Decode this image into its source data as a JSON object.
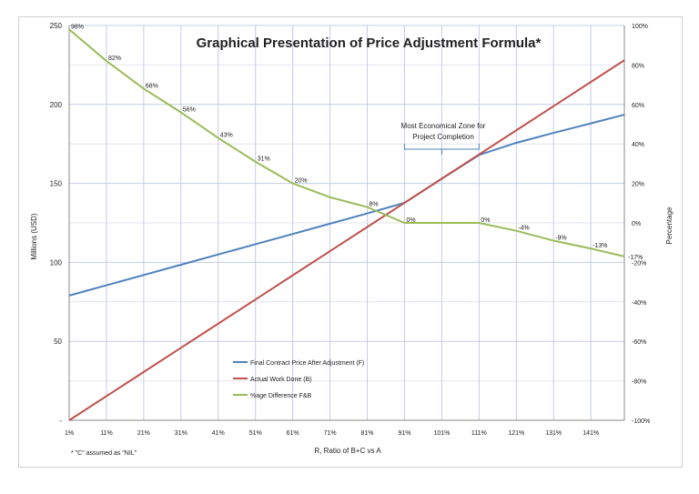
{
  "chart_data": {
    "type": "line",
    "title": "Graphical Presentation of Price Adjustment Formula*",
    "xlabel": "R, Ratio of B+C vs A",
    "ylabel": "Millions (USD)",
    "y2label": "Percentage",
    "footnote": "* \"C\" assumed as \"NIL\"",
    "annotation": "Most Economical Zone for Project Completion",
    "annotation_lines": [
      "Most Economical Zone for",
      "Project Completion"
    ],
    "annotation_range": [
      91,
      111
    ],
    "x_tick_labels": [
      "1%",
      "11%",
      "21%",
      "31%",
      "41%",
      "51%",
      "61%",
      "71%",
      "81%",
      "91%",
      "101%",
      "111%",
      "121%",
      "131%",
      "141%"
    ],
    "x_ticks": [
      1,
      11,
      21,
      31,
      41,
      51,
      61,
      71,
      81,
      91,
      101,
      111,
      121,
      131,
      141
    ],
    "xlim": [
      1,
      150
    ],
    "ylim": [
      0,
      250
    ],
    "y_ticks": [
      0,
      50,
      100,
      150,
      200,
      250
    ],
    "y_tick_labels": [
      "-",
      "50",
      "100",
      "150",
      "200",
      "250"
    ],
    "y2lim": [
      -100,
      100
    ],
    "y2_ticks": [
      -100,
      -80,
      -60,
      -40,
      -20,
      0,
      20,
      40,
      60,
      80,
      100
    ],
    "y2_tick_labels": [
      "-100%",
      "-80%",
      "-60%",
      "-40%",
      "-20%",
      "0%",
      "20%",
      "40%",
      "60%",
      "80%",
      "100%"
    ],
    "y2_extra_label": {
      "value": -17,
      "label": "-17%"
    },
    "grid": true,
    "legend_position": "bottom-center-inside",
    "series": [
      {
        "name": "Final Contract Price After Adjustment (F)",
        "color": "#4f81bd",
        "axis": "left",
        "x": [
          1,
          11,
          21,
          31,
          41,
          51,
          61,
          71,
          81,
          91,
          101,
          111,
          121,
          131,
          141,
          150
        ],
        "values": [
          79,
          85.5,
          92,
          98.5,
          105,
          111.5,
          118,
          124.5,
          131,
          137.7,
          153,
          168,
          175.7,
          182,
          188,
          193.5
        ]
      },
      {
        "name": "Actual Work Done (B)",
        "color": "#c0504d",
        "axis": "left",
        "x": [
          1,
          11,
          21,
          31,
          41,
          51,
          61,
          71,
          81,
          91,
          101,
          111,
          121,
          131,
          141,
          150
        ],
        "values": [
          0,
          15.3,
          30.6,
          45.9,
          61.2,
          76.5,
          91.8,
          107.1,
          122.4,
          137.7,
          153,
          168.3,
          183.6,
          198.9,
          214.2,
          228
        ]
      },
      {
        "name": "%age Difference F&B",
        "color": "#9bbb59",
        "axis": "right",
        "x": [
          1,
          11,
          21,
          31,
          41,
          51,
          61,
          71,
          81,
          91,
          101,
          111,
          121,
          131,
          141,
          150
        ],
        "values": [
          98,
          82,
          68,
          56,
          43,
          31,
          20,
          13,
          8,
          0,
          0,
          0,
          -4,
          -9,
          -13,
          -17
        ],
        "labels": [
          "98%",
          "82%",
          "68%",
          "56%",
          "43%",
          "31%",
          "20%",
          "",
          "8%",
          "0%",
          "",
          "0%",
          "-4%",
          "-9%",
          "-13%",
          ""
        ]
      }
    ]
  }
}
